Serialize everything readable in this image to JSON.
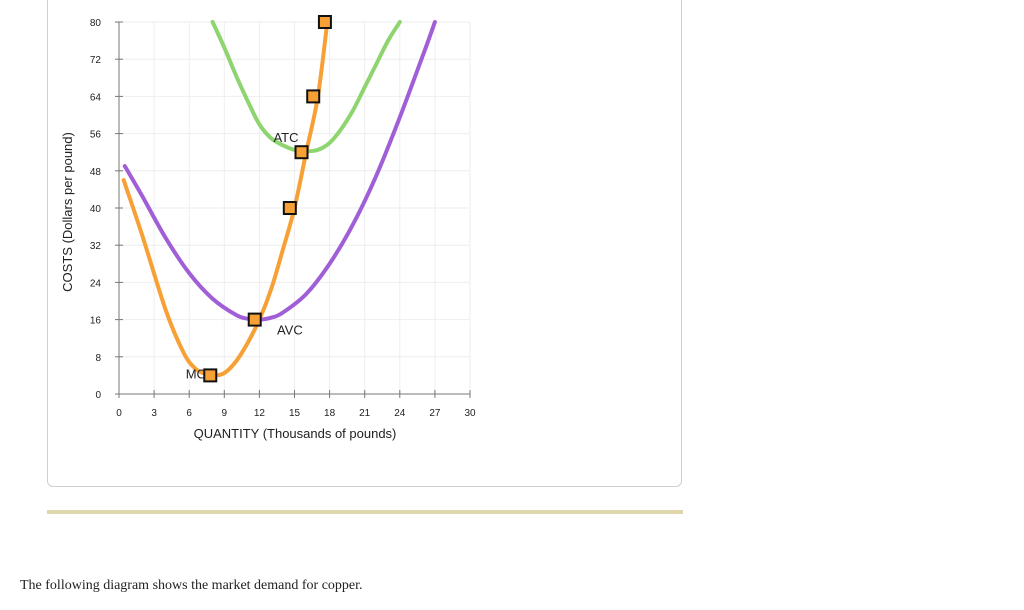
{
  "chart_data": {
    "type": "line",
    "xlabel": "QUANTITY (Thousands of pounds)",
    "ylabel": "COSTS (Dollars per pound)",
    "xlim": [
      0,
      30
    ],
    "ylim": [
      0,
      80
    ],
    "x_ticks": [
      0,
      3,
      6,
      9,
      12,
      15,
      18,
      21,
      24,
      27,
      30
    ],
    "y_ticks": [
      0,
      8,
      16,
      24,
      32,
      40,
      48,
      56,
      64,
      72,
      80
    ],
    "grid": true,
    "series": [
      {
        "name": "ATC",
        "color": "#8ed46f",
        "x": [
          8.0,
          9,
          10,
          11,
          12,
          13,
          14,
          15,
          16,
          17,
          18,
          19,
          20,
          21,
          22,
          23,
          24.0
        ],
        "y": [
          80.0,
          74.5,
          68.5,
          63.0,
          58.0,
          55.0,
          53.5,
          52.5,
          52.2,
          52.5,
          54.0,
          57.0,
          61.0,
          66.0,
          71.0,
          76.0,
          80.0
        ]
      },
      {
        "name": "AVC",
        "color": "#a05fd6",
        "x": [
          0.5,
          2,
          4,
          6,
          8,
          10,
          11,
          12,
          13,
          14,
          16,
          18,
          20,
          22,
          24,
          26,
          27.0
        ],
        "y": [
          49.0,
          42.5,
          33.5,
          26.0,
          20.5,
          17.0,
          16.2,
          16.0,
          16.4,
          17.5,
          21.5,
          28.0,
          36.5,
          47.0,
          59.5,
          73.0,
          80.0
        ]
      },
      {
        "name": "MC",
        "color": "#f7a035",
        "x": [
          0.4,
          2,
          4,
          5.5,
          6.5,
          7.5,
          8.2,
          9,
          10,
          11,
          12,
          13,
          14,
          15,
          16,
          17,
          17.8
        ],
        "y": [
          46.0,
          34.0,
          18.0,
          9.0,
          5.5,
          4.2,
          4.0,
          4.5,
          7.0,
          11.0,
          16.0,
          22.5,
          31.0,
          40.0,
          52.0,
          64.0,
          80.0
        ]
      }
    ],
    "points": [
      {
        "x": 7.8,
        "y": 4.0
      },
      {
        "x": 11.6,
        "y": 16.0
      },
      {
        "x": 14.6,
        "y": 40.0
      },
      {
        "x": 15.6,
        "y": 52.0
      },
      {
        "x": 16.6,
        "y": 64.0
      },
      {
        "x": 17.6,
        "y": 80.0
      }
    ],
    "point_color": "#f7a035",
    "curve_labels": [
      {
        "text": "ATC",
        "x": 13.2,
        "y": 54.2
      },
      {
        "text": "AVC",
        "x": 13.5,
        "y": 12.8
      },
      {
        "text": "MC",
        "x": 5.7,
        "y": 3.3
      }
    ]
  },
  "caption": "The following diagram shows the market demand for copper."
}
